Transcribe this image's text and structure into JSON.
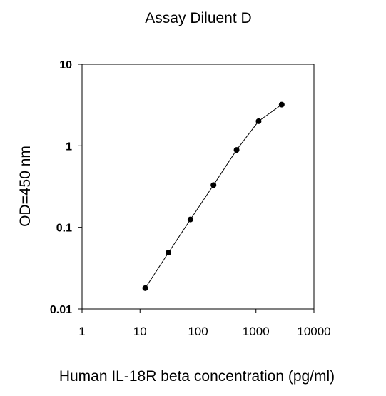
{
  "chart_data": {
    "type": "line",
    "title": "Assay Diluent D",
    "xlabel": "Human IL-18R beta  concentration (pg/ml)",
    "ylabel": "OD=450 nm",
    "x_scale": "log",
    "y_scale": "log",
    "xlim": [
      1,
      10000
    ],
    "ylim": [
      0.01,
      10
    ],
    "x_ticks": [
      "1",
      "10",
      "100",
      "1000",
      "10000"
    ],
    "y_ticks": [
      "10",
      "1",
      "0.1",
      "0.01"
    ],
    "grid": false,
    "legend": "none",
    "line_color": "#000000",
    "marker_color": "#000000",
    "series": [
      {
        "x": [
          12.3,
          30.9,
          74.1,
          185,
          463,
          1110,
          2780
        ],
        "y": [
          0.018,
          0.049,
          0.125,
          0.33,
          0.89,
          2.0,
          3.2
        ]
      }
    ]
  }
}
